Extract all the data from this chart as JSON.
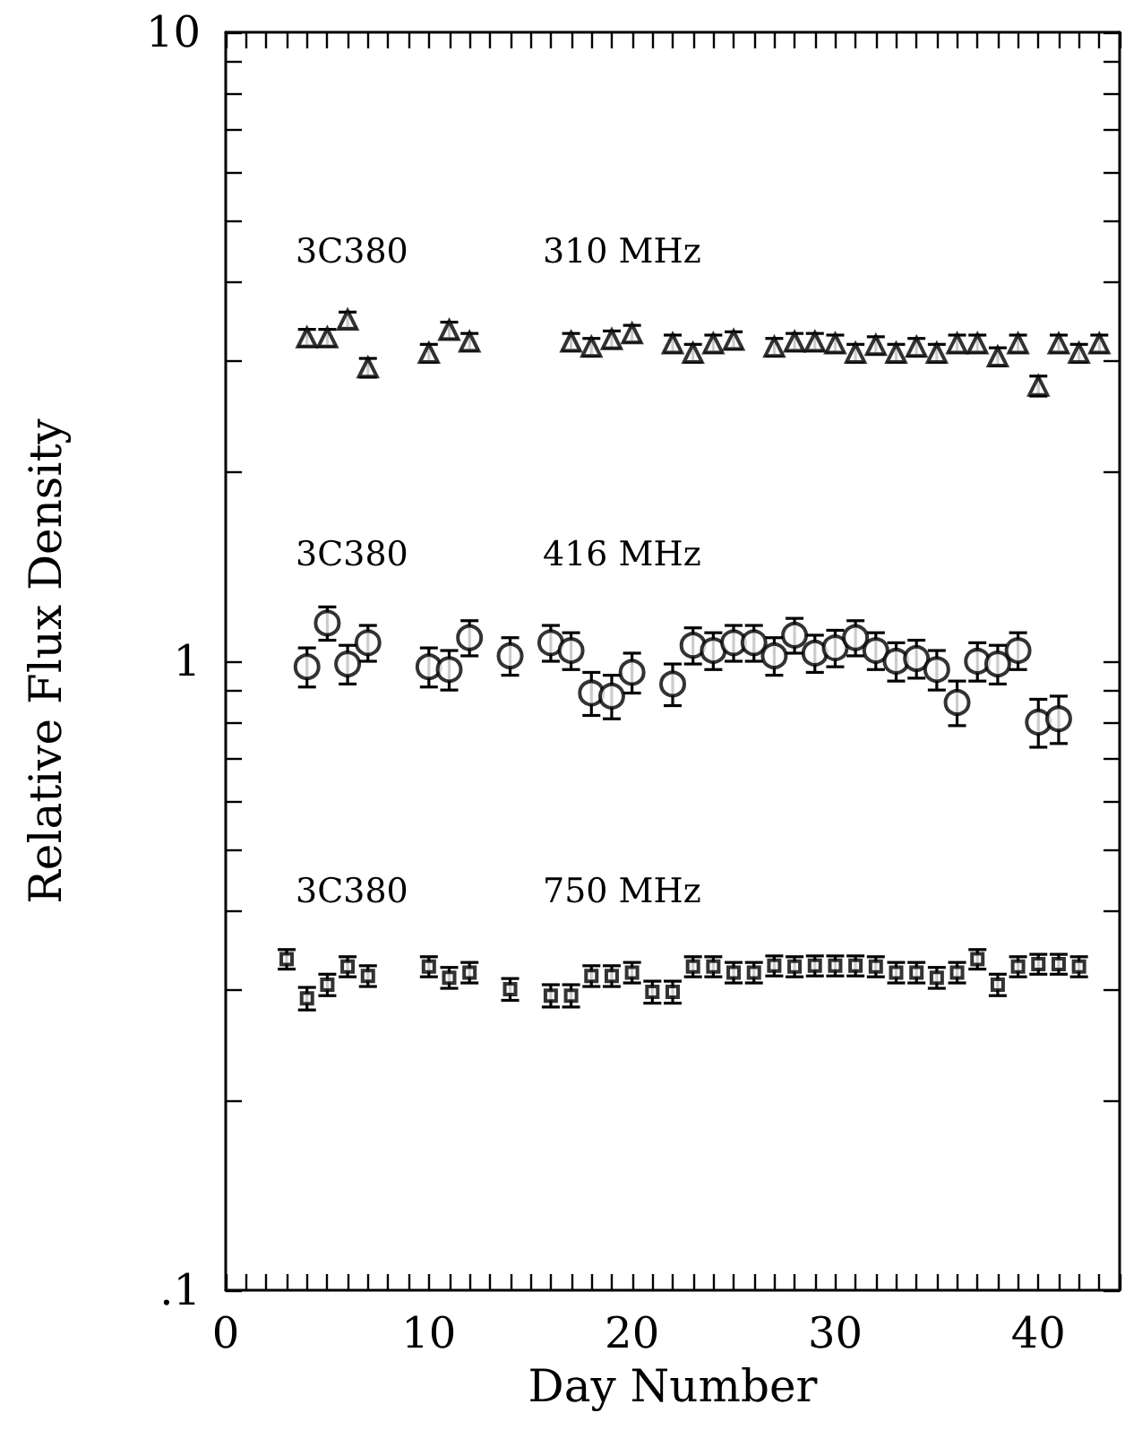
{
  "chart_data": {
    "type": "scatter",
    "xlabel": "Day Number",
    "ylabel": "Relative Flux Density",
    "log": "y",
    "grid": false,
    "xlim": [
      0,
      44
    ],
    "xticks": [
      0,
      {
        "value": 1,
        "label": null
      },
      {
        "value": 2,
        "label": null
      },
      {
        "value": 3,
        "label": null
      },
      {
        "value": 4,
        "label": null
      },
      {
        "value": 5,
        "label": null
      },
      {
        "value": 6,
        "label": null
      },
      {
        "value": 7,
        "label": null
      },
      {
        "value": 8,
        "label": null
      },
      {
        "value": 9,
        "label": null
      },
      10,
      {
        "value": 11,
        "label": null
      },
      {
        "value": 12,
        "label": null
      },
      {
        "value": 13,
        "label": null
      },
      {
        "value": 14,
        "label": null
      },
      {
        "value": 15,
        "label": null
      },
      {
        "value": 16,
        "label": null
      },
      {
        "value": 17,
        "label": null
      },
      {
        "value": 18,
        "label": null
      },
      {
        "value": 19,
        "label": null
      },
      20,
      {
        "value": 21,
        "label": null
      },
      {
        "value": 22,
        "label": null
      },
      {
        "value": 23,
        "label": null
      },
      {
        "value": 24,
        "label": null
      },
      {
        "value": 25,
        "label": null
      },
      {
        "value": 26,
        "label": null
      },
      {
        "value": 27,
        "label": null
      },
      {
        "value": 28,
        "label": null
      },
      {
        "value": 29,
        "label": null
      },
      30,
      {
        "value": 31,
        "label": null
      },
      {
        "value": 32,
        "label": null
      },
      {
        "value": 33,
        "label": null
      },
      {
        "value": 34,
        "label": null
      },
      {
        "value": 35,
        "label": null
      },
      {
        "value": 36,
        "label": null
      },
      {
        "value": 37,
        "label": null
      },
      {
        "value": 38,
        "label": null
      },
      {
        "value": 39,
        "label": null
      },
      40,
      {
        "value": 41,
        "label": null
      },
      {
        "value": 42,
        "label": null
      },
      {
        "value": 43,
        "label": null
      },
      {
        "value": 44,
        "label": null
      }
    ],
    "ylim": [
      0.1,
      10
    ],
    "yticks": [
      {
        "value": 0.1,
        "label": ".1"
      },
      {
        "value": 0.2,
        "label": null
      },
      {
        "value": 0.3,
        "label": null
      },
      {
        "value": 0.4,
        "label": null
      },
      {
        "value": 0.5,
        "label": null
      },
      {
        "value": 0.6,
        "label": null
      },
      {
        "value": 0.7,
        "label": null
      },
      {
        "value": 0.8,
        "label": null
      },
      {
        "value": 0.9,
        "label": null
      },
      1,
      {
        "value": 2,
        "label": null
      },
      {
        "value": 3,
        "label": null
      },
      {
        "value": 4,
        "label": null
      },
      {
        "value": 5,
        "label": null
      },
      {
        "value": 6,
        "label": null
      },
      {
        "value": 7,
        "label": null
      },
      {
        "value": 8,
        "label": null
      },
      {
        "value": 9,
        "label": null
      },
      10
    ],
    "annotations": [
      "3C380",
      "310 MHz",
      "3C380",
      "416 MHz",
      "3C380",
      "750 MHz"
    ],
    "series": [
      {
        "color": "#000000",
        "marker": "triangle",
        "x": [
          4,
          5,
          6,
          7,
          10,
          11,
          12,
          17,
          18,
          19,
          20,
          22,
          23,
          24,
          25,
          27,
          28,
          29,
          30,
          31,
          32,
          33,
          34,
          35,
          36,
          37,
          38,
          39,
          40,
          41,
          42,
          43
        ],
        "values": [
          3.27,
          3.27,
          3.49,
          2.93,
          3.09,
          3.36,
          3.22,
          3.22,
          3.16,
          3.25,
          3.32,
          3.2,
          3.09,
          3.2,
          3.24,
          3.16,
          3.22,
          3.22,
          3.2,
          3.09,
          3.18,
          3.09,
          3.16,
          3.09,
          3.2,
          3.2,
          3.05,
          3.2,
          2.74,
          3.2,
          3.09,
          3.2
        ],
        "errors": [
          0.1,
          0.1,
          0.1,
          0.1,
          0.1,
          0.1,
          0.1,
          0.1,
          0.1,
          0.1,
          0.1,
          0.1,
          0.1,
          0.1,
          0.1,
          0.1,
          0.1,
          0.1,
          0.1,
          0.1,
          0.1,
          0.1,
          0.1,
          0.1,
          0.1,
          0.1,
          0.1,
          0.1,
          0.1,
          0.1,
          0.1,
          0.1
        ]
      },
      {
        "color": "#000000",
        "marker": "circle",
        "x": [
          4,
          5,
          6,
          7,
          10,
          11,
          12,
          14,
          16,
          17,
          18,
          19,
          20,
          22,
          23,
          24,
          25,
          26,
          27,
          28,
          29,
          30,
          31,
          32,
          33,
          34,
          35,
          36,
          37,
          38,
          39,
          40,
          41
        ],
        "values": [
          0.98,
          1.15,
          0.99,
          1.07,
          0.98,
          0.97,
          1.09,
          1.02,
          1.07,
          1.04,
          0.89,
          0.88,
          0.96,
          0.92,
          1.06,
          1.04,
          1.07,
          1.07,
          1.02,
          1.1,
          1.03,
          1.05,
          1.09,
          1.04,
          1.0,
          1.01,
          0.97,
          0.86,
          1.0,
          0.99,
          1.04,
          0.8,
          0.81
        ],
        "errors": [
          0.07,
          0.07,
          0.07,
          0.07,
          0.07,
          0.07,
          0.07,
          0.07,
          0.07,
          0.07,
          0.07,
          0.07,
          0.07,
          0.07,
          0.07,
          0.07,
          0.07,
          0.07,
          0.07,
          0.07,
          0.07,
          0.07,
          0.07,
          0.07,
          0.07,
          0.07,
          0.07,
          0.07,
          0.07,
          0.07,
          0.07,
          0.07,
          0.07
        ]
      },
      {
        "color": "#000000",
        "marker": "square",
        "x": [
          3,
          4,
          5,
          6,
          7,
          10,
          11,
          12,
          14,
          16,
          17,
          18,
          19,
          20,
          21,
          22,
          23,
          24,
          25,
          26,
          27,
          28,
          29,
          30,
          31,
          32,
          33,
          34,
          35,
          36,
          37,
          38,
          39,
          40,
          41,
          42
        ],
        "values": [
          0.336,
          0.291,
          0.306,
          0.327,
          0.316,
          0.327,
          0.314,
          0.32,
          0.301,
          0.294,
          0.294,
          0.316,
          0.316,
          0.32,
          0.298,
          0.298,
          0.327,
          0.327,
          0.32,
          0.32,
          0.328,
          0.327,
          0.328,
          0.328,
          0.328,
          0.327,
          0.32,
          0.32,
          0.314,
          0.32,
          0.336,
          0.306,
          0.327,
          0.33,
          0.33,
          0.327
        ],
        "errors": [
          0.012,
          0.012,
          0.012,
          0.012,
          0.012,
          0.012,
          0.012,
          0.012,
          0.012,
          0.012,
          0.012,
          0.012,
          0.012,
          0.012,
          0.012,
          0.012,
          0.012,
          0.012,
          0.012,
          0.012,
          0.012,
          0.012,
          0.012,
          0.012,
          0.012,
          0.012,
          0.012,
          0.012,
          0.012,
          0.012,
          0.012,
          0.012,
          0.012,
          0.012,
          0.012,
          0.012
        ]
      }
    ]
  }
}
